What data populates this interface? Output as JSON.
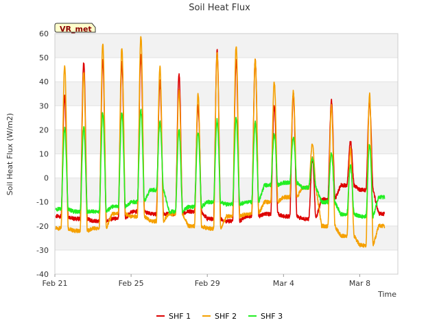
{
  "chart_data": {
    "type": "line",
    "title": "Soil Heat Flux",
    "xlabel": "Time",
    "ylabel": "Soil Heat Flux (W/m2)",
    "site_label": "VR_met",
    "ylim": [
      -40,
      60
    ],
    "xlim": [
      0,
      18
    ],
    "yticks": [
      -40,
      -30,
      -20,
      -10,
      0,
      10,
      20,
      30,
      40,
      50,
      60
    ],
    "xticks": [
      {
        "value": 0,
        "label": "Feb 21"
      },
      {
        "value": 4,
        "label": "Feb 25"
      },
      {
        "value": 8,
        "label": "Feb 29"
      },
      {
        "value": 12,
        "label": "Mar 4"
      },
      {
        "value": 16,
        "label": "Mar 8"
      }
    ],
    "grid": true,
    "legend_position": "bottom",
    "series": [
      {
        "name": "SHF 1",
        "color": "#dd0000",
        "night": [
          -16,
          -17,
          -18,
          -17,
          -14,
          -15,
          -15,
          -14,
          -17,
          -18,
          -16,
          -15,
          -16,
          -17,
          -9,
          -3,
          -5,
          -15,
          -20,
          -19,
          -16
        ],
        "peak": [
          34,
          48,
          49,
          48,
          51,
          40,
          43,
          30,
          53,
          49,
          49,
          30,
          35,
          8,
          32,
          15,
          32,
          0
        ]
      },
      {
        "name": "SHF 2",
        "color": "#f5a000",
        "night": [
          -21,
          -22,
          -21,
          -15,
          -16,
          -18,
          -15,
          -20,
          -21,
          -16,
          -15,
          -10,
          -8,
          -4,
          -20,
          -24,
          -28,
          -20,
          -10,
          -13,
          -20
        ],
        "peak": [
          47,
          44,
          56,
          54,
          59,
          46,
          36,
          35,
          52,
          55,
          49,
          40,
          36,
          14,
          30,
          12,
          35,
          0
        ]
      },
      {
        "name": "SHF 3",
        "color": "#22ee22",
        "night": [
          -13,
          -14,
          -14,
          -12,
          -10,
          -5,
          -14,
          -12,
          -10,
          -11,
          -10,
          -3,
          -2,
          -4,
          -10,
          -15,
          -16,
          -8,
          -8,
          -10,
          -13
        ],
        "peak": [
          21,
          21,
          27,
          27,
          28,
          23,
          20,
          19,
          24,
          25,
          23,
          18,
          17,
          8,
          10,
          5,
          14,
          0
        ]
      }
    ]
  }
}
